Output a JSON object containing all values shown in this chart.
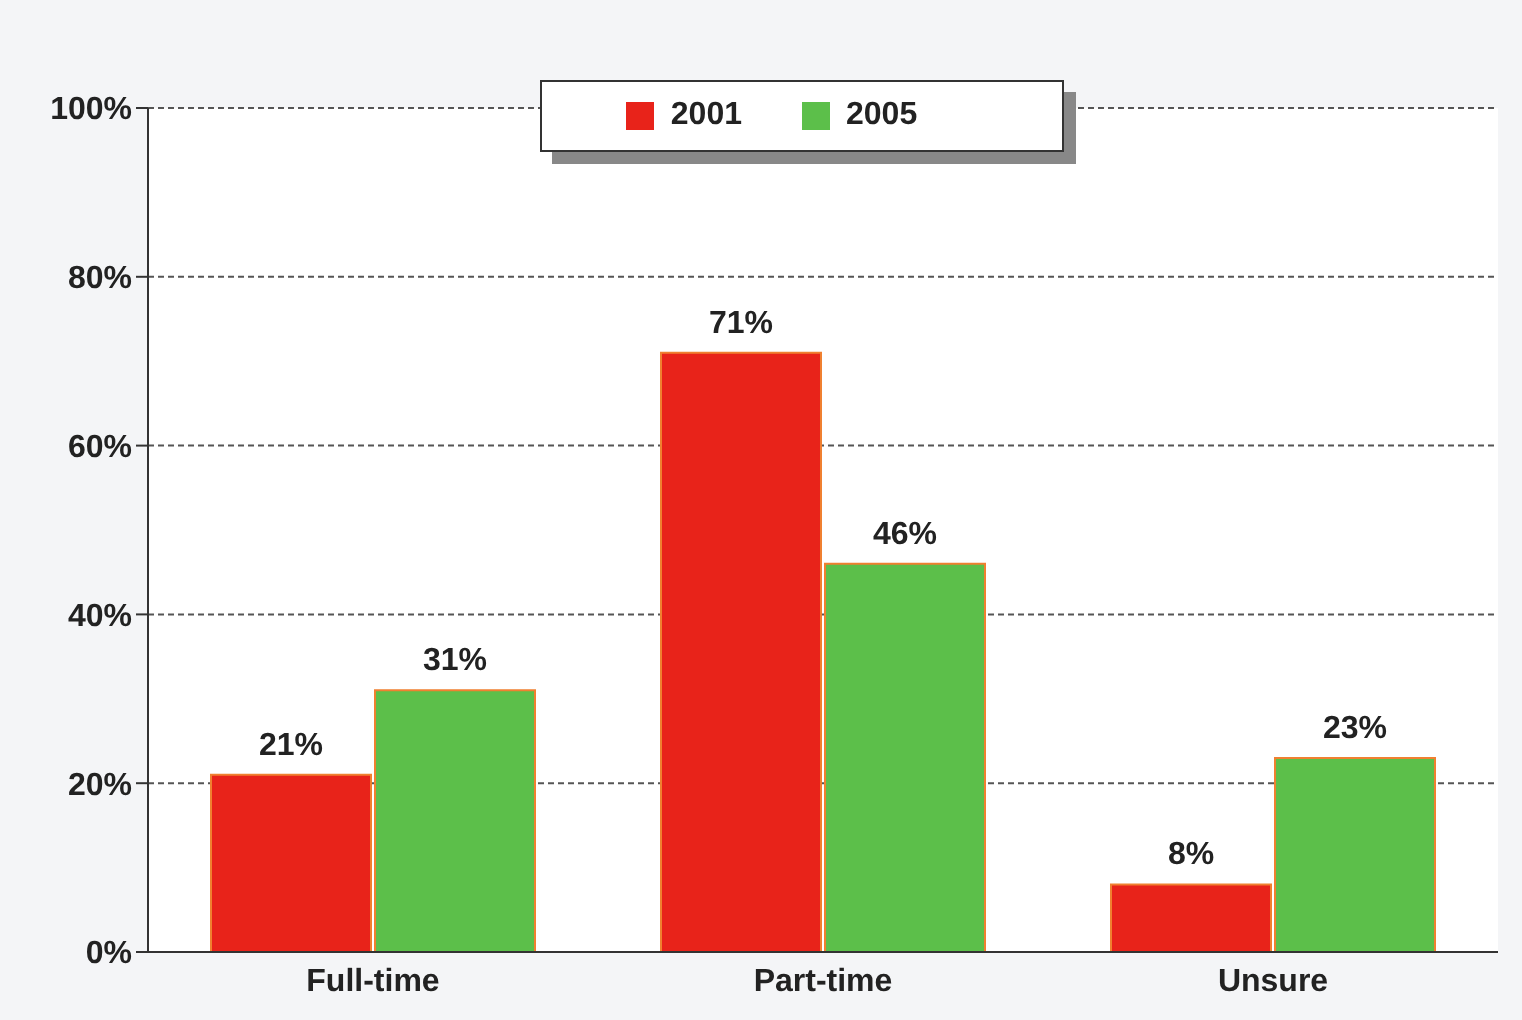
{
  "chart_data": {
    "type": "bar",
    "categories": [
      "Full-time",
      "Part-time",
      "Unsure"
    ],
    "series": [
      {
        "name": "2001",
        "color": "#e8231a",
        "values": [
          21,
          71,
          8
        ],
        "value_labels": [
          "21%",
          "71%",
          "8%"
        ]
      },
      {
        "name": "2005",
        "color": "#5cbf4a",
        "values": [
          31,
          46,
          23
        ],
        "value_labels": [
          "31%",
          "46%",
          "23%"
        ]
      }
    ],
    "ylim": [
      0,
      100
    ],
    "yticks": [
      {
        "value": 0,
        "label": "0%"
      },
      {
        "value": 20,
        "label": "20%"
      },
      {
        "value": 40,
        "label": "40%"
      },
      {
        "value": 60,
        "label": "60%"
      },
      {
        "value": 80,
        "label": "80%"
      },
      {
        "value": 100,
        "label": "100%"
      }
    ],
    "grid": "y",
    "legend": "top"
  }
}
